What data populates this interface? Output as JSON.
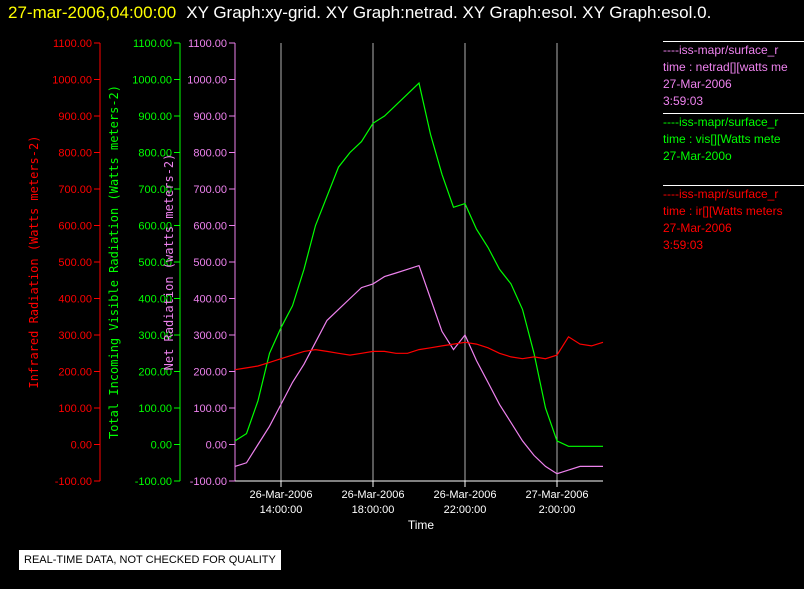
{
  "header": {
    "time": "27-mar-2006,04:00:00",
    "graphs": "XY Graph:xy-grid.  XY Graph:netrad.  XY Graph:esol.  XY Graph:esol.0."
  },
  "legend": [
    {
      "source": "----iss-mapr/surface_r",
      "field": "time : netrad[][watts me",
      "date": "27-Mar-2006",
      "time": "3:59:03",
      "color": "#ee82ee"
    },
    {
      "source": "----iss-mapr/surface_r",
      "field": "time : vis[][Watts mete",
      "date": "27-Mar-200o",
      "time": "",
      "color": "#00ff00"
    },
    {
      "source": "----iss-mapr/surface_r",
      "field": "time : ir[][Watts meters",
      "date": "27-Mar-2006",
      "time": "3:59:03",
      "color": "#ff0000"
    }
  ],
  "disclaimer": "REAL-TIME DATA, NOT CHECKED FOR QUALITY",
  "chart_data": {
    "type": "line",
    "xlabel": "Time",
    "x_ticks": [
      {
        "date": "26-Mar-2006",
        "time": "14:00:00",
        "hour": 14
      },
      {
        "date": "26-Mar-2006",
        "time": "18:00:00",
        "hour": 18
      },
      {
        "date": "26-Mar-2006",
        "time": "22:00:00",
        "hour": 22
      },
      {
        "date": "27-Mar-2006",
        "time": "2:00:00",
        "hour": 26
      }
    ],
    "xlim": [
      12.0,
      28.0
    ],
    "ylim": [
      -100,
      1100
    ],
    "y_ticks": [
      "-100.00",
      "0.00",
      "100.00",
      "200.00",
      "300.00",
      "400.00",
      "500.00",
      "600.00",
      "700.00",
      "800.00",
      "900.00",
      "1000.00",
      "1100.00"
    ],
    "grid": "vertical",
    "axes": [
      {
        "label": "Infrared Radiation (Watts meters-2)",
        "color": "#ff0000"
      },
      {
        "label": "Total Incoming Visible Radiation (Watts meters-2)",
        "color": "#00ff00"
      },
      {
        "label": "Net Radiation (watts meters-2)",
        "color": "#ee82ee"
      }
    ],
    "series": [
      {
        "color": "#00ff00",
        "x": [
          12.0,
          12.5,
          13.0,
          13.5,
          14.0,
          14.5,
          15.0,
          15.5,
          16.0,
          16.5,
          17.0,
          17.5,
          18.0,
          18.5,
          19.0,
          19.5,
          20.0,
          20.5,
          21.0,
          21.5,
          22.0,
          22.5,
          23.0,
          23.5,
          24.0,
          24.5,
          25.0,
          25.5,
          26.0,
          26.5,
          27.0,
          27.5,
          28.0
        ],
        "y": [
          10,
          30,
          120,
          250,
          320,
          380,
          480,
          600,
          680,
          760,
          800,
          830,
          880,
          900,
          930,
          960,
          990,
          850,
          740,
          650,
          660,
          590,
          540,
          480,
          440,
          370,
          250,
          100,
          10,
          -5,
          -5,
          -5,
          -5
        ]
      },
      {
        "color": "#ee82ee",
        "x": [
          12.0,
          12.5,
          13.0,
          13.5,
          14.0,
          14.5,
          15.0,
          15.5,
          16.0,
          16.5,
          17.0,
          17.5,
          18.0,
          18.5,
          19.0,
          19.5,
          20.0,
          20.5,
          21.0,
          21.5,
          22.0,
          22.5,
          23.0,
          23.5,
          24.0,
          24.5,
          25.0,
          25.5,
          26.0,
          26.5,
          27.0,
          27.5,
          28.0
        ],
        "y": [
          -60,
          -50,
          0,
          50,
          110,
          170,
          220,
          280,
          340,
          370,
          400,
          430,
          440,
          460,
          470,
          480,
          490,
          400,
          310,
          260,
          300,
          230,
          170,
          110,
          60,
          10,
          -30,
          -60,
          -80,
          -70,
          -60,
          -60,
          -60
        ]
      },
      {
        "color": "#ff0000",
        "x": [
          12.0,
          12.5,
          13.0,
          13.5,
          14.0,
          14.5,
          15.0,
          15.5,
          16.0,
          16.5,
          17.0,
          17.5,
          18.0,
          18.5,
          19.0,
          19.5,
          20.0,
          20.5,
          21.0,
          21.5,
          22.0,
          22.5,
          23.0,
          23.5,
          24.0,
          24.5,
          25.0,
          25.5,
          26.0,
          26.5,
          27.0,
          27.5,
          28.0
        ],
        "y": [
          205,
          210,
          215,
          225,
          235,
          245,
          255,
          260,
          255,
          250,
          245,
          250,
          255,
          255,
          250,
          250,
          260,
          265,
          270,
          275,
          280,
          275,
          265,
          250,
          240,
          235,
          240,
          235,
          245,
          295,
          275,
          270,
          280
        ]
      }
    ]
  }
}
